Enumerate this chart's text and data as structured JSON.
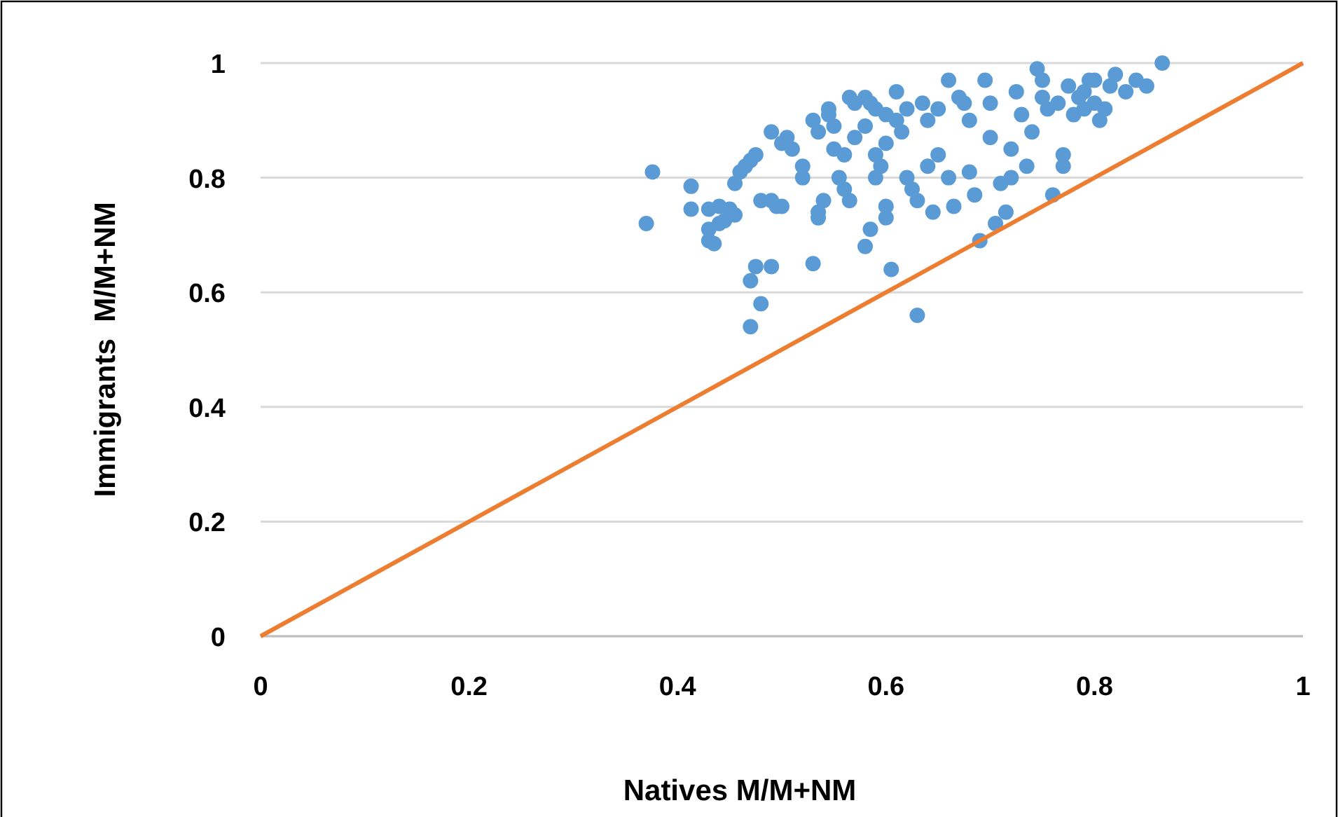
{
  "chart_data": {
    "type": "scatter",
    "xlabel": "Natives M/M+NM",
    "ylabel": "Immigrants  M/M+NM",
    "xlim": [
      0,
      1
    ],
    "ylim": [
      0,
      1
    ],
    "xticks": [
      0,
      0.2,
      0.4,
      0.6,
      0.8,
      1
    ],
    "yticks": [
      0,
      0.2,
      0.4,
      0.6,
      0.8,
      1
    ],
    "grid": "y",
    "series": [
      {
        "marker": "circle",
        "color": "#5b9bd5",
        "x": [
          0.37,
          0.376,
          0.413,
          0.413,
          0.43,
          0.44,
          0.45,
          0.455,
          0.43,
          0.44,
          0.43,
          0.435,
          0.445,
          0.455,
          0.46,
          0.465,
          0.47,
          0.475,
          0.47,
          0.48,
          0.47,
          0.475,
          0.49,
          0.49,
          0.495,
          0.5,
          0.48,
          0.49,
          0.5,
          0.51,
          0.505,
          0.52,
          0.52,
          0.53,
          0.535,
          0.535,
          0.535,
          0.54,
          0.53,
          0.545,
          0.545,
          0.55,
          0.55,
          0.555,
          0.56,
          0.56,
          0.565,
          0.565,
          0.57,
          0.57,
          0.58,
          0.585,
          0.58,
          0.585,
          0.59,
          0.59,
          0.595,
          0.6,
          0.6,
          0.6,
          0.605,
          0.61,
          0.61,
          0.615,
          0.62,
          0.62,
          0.625,
          0.63,
          0.635,
          0.63,
          0.64,
          0.64,
          0.645,
          0.65,
          0.65,
          0.66,
          0.66,
          0.665,
          0.67,
          0.675,
          0.68,
          0.68,
          0.685,
          0.69,
          0.695,
          0.7,
          0.7,
          0.705,
          0.71,
          0.715,
          0.72,
          0.72,
          0.725,
          0.73,
          0.735,
          0.74,
          0.745,
          0.75,
          0.75,
          0.755,
          0.76,
          0.765,
          0.77,
          0.77,
          0.775,
          0.78,
          0.785,
          0.79,
          0.795,
          0.8,
          0.805,
          0.81,
          0.815,
          0.82,
          0.83,
          0.84,
          0.85,
          0.865,
          0.8,
          0.79,
          0.6,
          0.58,
          0.59
        ],
        "values": [
          0.72,
          0.81,
          0.785,
          0.745,
          0.745,
          0.75,
          0.745,
          0.735,
          0.71,
          0.72,
          0.69,
          0.685,
          0.725,
          0.79,
          0.81,
          0.82,
          0.83,
          0.84,
          0.54,
          0.58,
          0.62,
          0.645,
          0.645,
          0.76,
          0.75,
          0.75,
          0.76,
          0.88,
          0.86,
          0.85,
          0.87,
          0.82,
          0.8,
          0.9,
          0.88,
          0.73,
          0.74,
          0.76,
          0.65,
          0.91,
          0.92,
          0.85,
          0.89,
          0.8,
          0.84,
          0.78,
          0.76,
          0.94,
          0.93,
          0.87,
          0.94,
          0.93,
          0.68,
          0.71,
          0.84,
          0.8,
          0.82,
          0.86,
          0.75,
          0.73,
          0.64,
          0.95,
          0.9,
          0.88,
          0.92,
          0.8,
          0.78,
          0.76,
          0.93,
          0.56,
          0.9,
          0.82,
          0.74,
          0.92,
          0.84,
          0.97,
          0.8,
          0.75,
          0.94,
          0.93,
          0.9,
          0.81,
          0.77,
          0.69,
          0.97,
          0.93,
          0.87,
          0.72,
          0.79,
          0.74,
          0.85,
          0.8,
          0.95,
          0.91,
          0.82,
          0.88,
          0.99,
          0.97,
          0.94,
          0.92,
          0.77,
          0.93,
          0.84,
          0.82,
          0.96,
          0.91,
          0.94,
          0.95,
          0.97,
          0.93,
          0.9,
          0.92,
          0.96,
          0.98,
          0.95,
          0.97,
          0.96,
          1.0,
          0.97,
          0.92,
          0.91,
          0.89,
          0.92
        ]
      },
      {
        "type": "line",
        "color": "#ed7d31",
        "line_style": "solid",
        "x": [
          0,
          1
        ],
        "values": [
          0,
          1
        ]
      }
    ]
  }
}
